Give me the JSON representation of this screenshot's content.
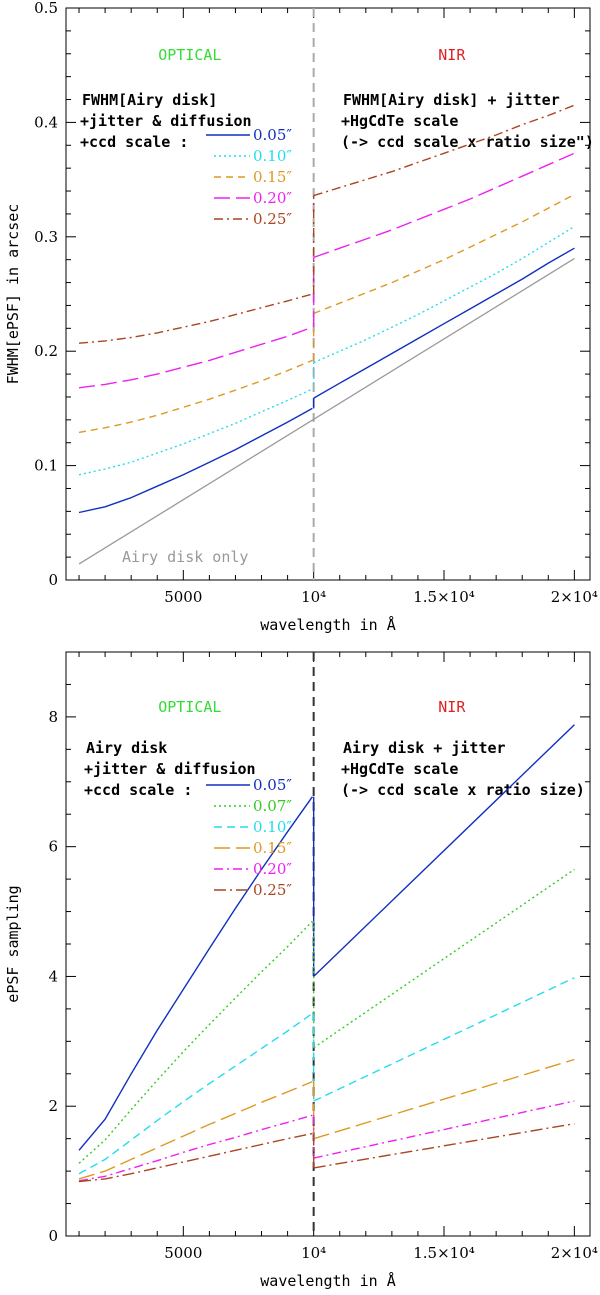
{
  "chart_data": [
    {
      "type": "line",
      "ylabel": "FWHM[ePSF] in arcsec",
      "xlabel": "wavelength in Å",
      "xlim": [
        500,
        20600
      ],
      "ylim": [
        0,
        0.5
      ],
      "x_ticks": [
        {
          "v": 5000,
          "label": "5000"
        },
        {
          "v": 10000,
          "label": "10⁴"
        },
        {
          "v": 15000,
          "label": "1.5×10⁴"
        },
        {
          "v": 20000,
          "label": "2×10⁴"
        }
      ],
      "y_ticks": [
        {
          "v": 0,
          "label": "0"
        },
        {
          "v": 0.1,
          "label": "0.1"
        },
        {
          "v": 0.2,
          "label": "0.2"
        },
        {
          "v": 0.3,
          "label": "0.3"
        },
        {
          "v": 0.4,
          "label": "0.4"
        },
        {
          "v": 0.5,
          "label": "0.5"
        }
      ],
      "divider_x": 10000,
      "divider_color": "#aaaaaa",
      "region_left": {
        "text": "OPTICAL",
        "color": "#33dd33"
      },
      "region_right": {
        "text": "NIR",
        "color": "#dd2222"
      },
      "annotation_left": [
        "FWHM[Airy disk]",
        "+jitter & diffusion",
        "+ccd scale :"
      ],
      "annotation_right": [
        "FWHM[Airy disk] + jitter",
        "+HgCdTe scale",
        "(-> ccd scale x ratio size\")"
      ],
      "baseline": {
        "name": "Airy disk only",
        "color": "#999999",
        "x": [
          1000,
          20000
        ],
        "values": [
          0.014,
          0.281
        ]
      },
      "series": [
        {
          "name": "0.05″",
          "color": "#1030c0",
          "dash": "",
          "x": [
            1000,
            2000,
            3000,
            4000,
            5000,
            6000,
            7000,
            8000,
            9000,
            9950
          ],
          "values": [
            0.059,
            0.064,
            0.072,
            0.082,
            0.092,
            0.103,
            0.114,
            0.126,
            0.138,
            0.15
          ],
          "nir_x": [
            10000,
            11000,
            12000,
            13000,
            14000,
            15000,
            16000,
            17000,
            18000,
            19000,
            20000
          ],
          "nir_values": [
            0.159,
            0.172,
            0.185,
            0.198,
            0.211,
            0.224,
            0.237,
            0.25,
            0.263,
            0.277,
            0.29
          ]
        },
        {
          "name": "0.10″",
          "color": "#22ddee",
          "dash": "2,3",
          "x": [
            1000,
            2000,
            3000,
            4000,
            5000,
            6000,
            7000,
            8000,
            9000,
            9950
          ],
          "values": [
            0.092,
            0.097,
            0.103,
            0.111,
            0.119,
            0.128,
            0.137,
            0.147,
            0.157,
            0.167
          ],
          "nir_x": [
            10000,
            11000,
            12000,
            13000,
            14000,
            15000,
            16000,
            17000,
            18000,
            19000,
            20000
          ],
          "nir_values": [
            0.19,
            0.2,
            0.21,
            0.221,
            0.232,
            0.244,
            0.256,
            0.268,
            0.281,
            0.295,
            0.309
          ]
        },
        {
          "name": "0.15″",
          "color": "#dd9922",
          "dash": "7,5",
          "x": [
            1000,
            2000,
            3000,
            4000,
            5000,
            6000,
            7000,
            8000,
            9000,
            9950
          ],
          "values": [
            0.129,
            0.133,
            0.138,
            0.144,
            0.151,
            0.158,
            0.166,
            0.174,
            0.183,
            0.192
          ],
          "nir_x": [
            10000,
            11000,
            12000,
            13000,
            14000,
            15000,
            16000,
            17000,
            18000,
            19000,
            20000
          ],
          "nir_values": [
            0.233,
            0.242,
            0.251,
            0.26,
            0.27,
            0.28,
            0.291,
            0.302,
            0.313,
            0.325,
            0.337
          ]
        },
        {
          "name": "0.20″",
          "color": "#ee22ee",
          "dash": "16,6",
          "x": [
            1000,
            2000,
            3000,
            4000,
            5000,
            6000,
            7000,
            8000,
            9000,
            9950
          ],
          "values": [
            0.168,
            0.171,
            0.175,
            0.18,
            0.186,
            0.192,
            0.199,
            0.206,
            0.213,
            0.221
          ],
          "nir_x": [
            10000,
            11000,
            12000,
            13000,
            14000,
            15000,
            16000,
            17000,
            18000,
            19000,
            20000
          ],
          "nir_values": [
            0.282,
            0.29,
            0.298,
            0.306,
            0.315,
            0.324,
            0.333,
            0.343,
            0.353,
            0.363,
            0.373
          ]
        },
        {
          "name": "0.25″",
          "color": "#aa4422",
          "dash": "9,4,2,4",
          "x": [
            1000,
            2000,
            3000,
            4000,
            5000,
            6000,
            7000,
            8000,
            9000,
            9950
          ],
          "values": [
            0.207,
            0.209,
            0.212,
            0.216,
            0.221,
            0.226,
            0.232,
            0.238,
            0.244,
            0.25
          ],
          "nir_x": [
            10000,
            11000,
            12000,
            13000,
            14000,
            15000,
            16000,
            17000,
            18000,
            19000,
            20000
          ],
          "nir_values": [
            0.336,
            0.343,
            0.35,
            0.357,
            0.365,
            0.373,
            0.381,
            0.389,
            0.398,
            0.406,
            0.415
          ]
        }
      ]
    },
    {
      "type": "line",
      "ylabel": "ePSF sampling",
      "xlabel": "wavelength in Å",
      "xlim": [
        500,
        20600
      ],
      "ylim": [
        0,
        9
      ],
      "x_ticks": [
        {
          "v": 5000,
          "label": "5000"
        },
        {
          "v": 10000,
          "label": "10⁴"
        },
        {
          "v": 15000,
          "label": "1.5×10⁴"
        },
        {
          "v": 20000,
          "label": "2×10⁴"
        }
      ],
      "y_ticks": [
        {
          "v": 0,
          "label": "0"
        },
        {
          "v": 2,
          "label": "2"
        },
        {
          "v": 4,
          "label": "4"
        },
        {
          "v": 6,
          "label": "6"
        },
        {
          "v": 8,
          "label": "8"
        }
      ],
      "divider_x": 10000,
      "divider_color": "#333333",
      "region_left": {
        "text": "OPTICAL",
        "color": "#33dd33"
      },
      "region_right": {
        "text": "NIR",
        "color": "#dd2222"
      },
      "annotation_left": [
        "Airy disk",
        "+jitter & diffusion",
        "+ccd scale :"
      ],
      "annotation_right": [
        "Airy disk + jitter",
        "+HgCdTe scale",
        "(-> ccd scale x ratio size)"
      ],
      "series": [
        {
          "name": "0.05″",
          "color": "#1030c0",
          "dash": "",
          "x": [
            1000,
            2000,
            3000,
            4000,
            5000,
            6000,
            7000,
            8000,
            9000,
            9950
          ],
          "values": [
            1.32,
            1.8,
            2.5,
            3.17,
            3.8,
            4.43,
            5.05,
            5.65,
            6.23,
            6.77
          ],
          "nir_x": [
            10000,
            20000
          ],
          "nir_values": [
            4.0,
            7.88
          ]
        },
        {
          "name": "0.07″",
          "color": "#33cc22",
          "dash": "2,3",
          "x": [
            1000,
            2000,
            3000,
            4000,
            5000,
            6000,
            7000,
            8000,
            9000,
            9950
          ],
          "values": [
            1.12,
            1.48,
            1.95,
            2.4,
            2.84,
            3.26,
            3.67,
            4.07,
            4.46,
            4.85
          ],
          "nir_x": [
            10000,
            20000
          ],
          "nir_values": [
            2.9,
            5.65
          ]
        },
        {
          "name": "0.10″",
          "color": "#22ddee",
          "dash": "8,5",
          "x": [
            1000,
            2000,
            3000,
            4000,
            5000,
            6000,
            7000,
            8000,
            9000,
            9950
          ],
          "values": [
            0.96,
            1.18,
            1.48,
            1.78,
            2.07,
            2.35,
            2.62,
            2.89,
            3.16,
            3.43
          ],
          "nir_x": [
            10000,
            20000
          ],
          "nir_values": [
            2.08,
            3.98
          ]
        },
        {
          "name": "0.15″",
          "color": "#dd9922",
          "dash": "16,6",
          "x": [
            1000,
            2000,
            3000,
            4000,
            5000,
            6000,
            7000,
            8000,
            9000,
            9950
          ],
          "values": [
            0.88,
            1.0,
            1.18,
            1.36,
            1.54,
            1.72,
            1.89,
            2.06,
            2.22,
            2.38
          ],
          "nir_x": [
            10000,
            20000
          ],
          "nir_values": [
            1.5,
            2.72
          ]
        },
        {
          "name": "0.20″",
          "color": "#ee22ee",
          "dash": "9,4,2,4",
          "x": [
            1000,
            2000,
            3000,
            4000,
            5000,
            6000,
            7000,
            8000,
            9000,
            9950
          ],
          "values": [
            0.85,
            0.92,
            1.04,
            1.16,
            1.29,
            1.41,
            1.52,
            1.64,
            1.75,
            1.86
          ],
          "nir_x": [
            10000,
            20000
          ],
          "nir_values": [
            1.2,
            2.08
          ]
        },
        {
          "name": "0.25″",
          "color": "#aa4422",
          "dash": "12,4,2,4",
          "x": [
            1000,
            2000,
            3000,
            4000,
            5000,
            6000,
            7000,
            8000,
            9000,
            9950
          ],
          "values": [
            0.84,
            0.88,
            0.96,
            1.05,
            1.14,
            1.23,
            1.32,
            1.41,
            1.5,
            1.58
          ],
          "nir_x": [
            10000,
            20000
          ],
          "nir_values": [
            1.05,
            1.73
          ]
        }
      ]
    }
  ]
}
